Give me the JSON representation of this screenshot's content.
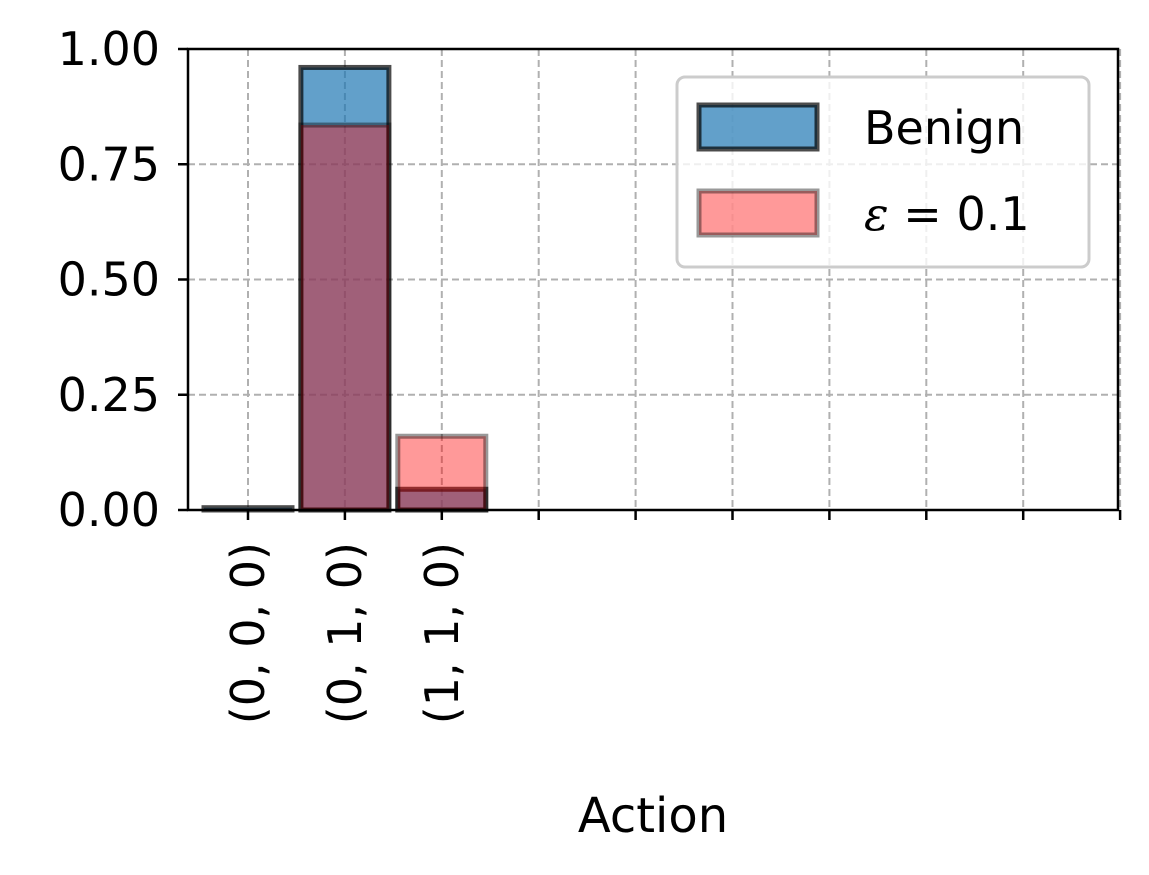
{
  "chart_data": {
    "type": "bar",
    "categories": [
      "(0, 0, 0)",
      "(0, 1, 0)",
      "(1, 1, 0)",
      "",
      "",
      "",
      "",
      "",
      "",
      ""
    ],
    "series": [
      {
        "name": "Benign",
        "values": [
          0.005,
          0.96,
          0.045,
          0,
          0,
          0,
          0,
          0,
          0,
          0
        ],
        "color": "#1f77b4",
        "edgecolor": "#000000"
      },
      {
        "name": "ε = 0.1",
        "values": [
          0.0,
          0.835,
          0.16,
          0,
          0,
          0,
          0,
          0,
          0,
          0
        ],
        "color": "#ff0000",
        "edgecolor": "#000000"
      }
    ],
    "xlabel": "Action",
    "ylabel": "",
    "ylim": [
      0,
      1.0
    ],
    "yticks": [
      "0.00",
      "0.25",
      "0.50",
      "0.75",
      "1.00"
    ],
    "ytick_values": [
      0,
      0.25,
      0.5,
      0.75,
      1.0
    ],
    "grid": true,
    "legend_position": "upper-right",
    "legend": {
      "benign_label": "Benign",
      "eps_symbol": "ε",
      "eps_rest": " = 0.1"
    }
  }
}
